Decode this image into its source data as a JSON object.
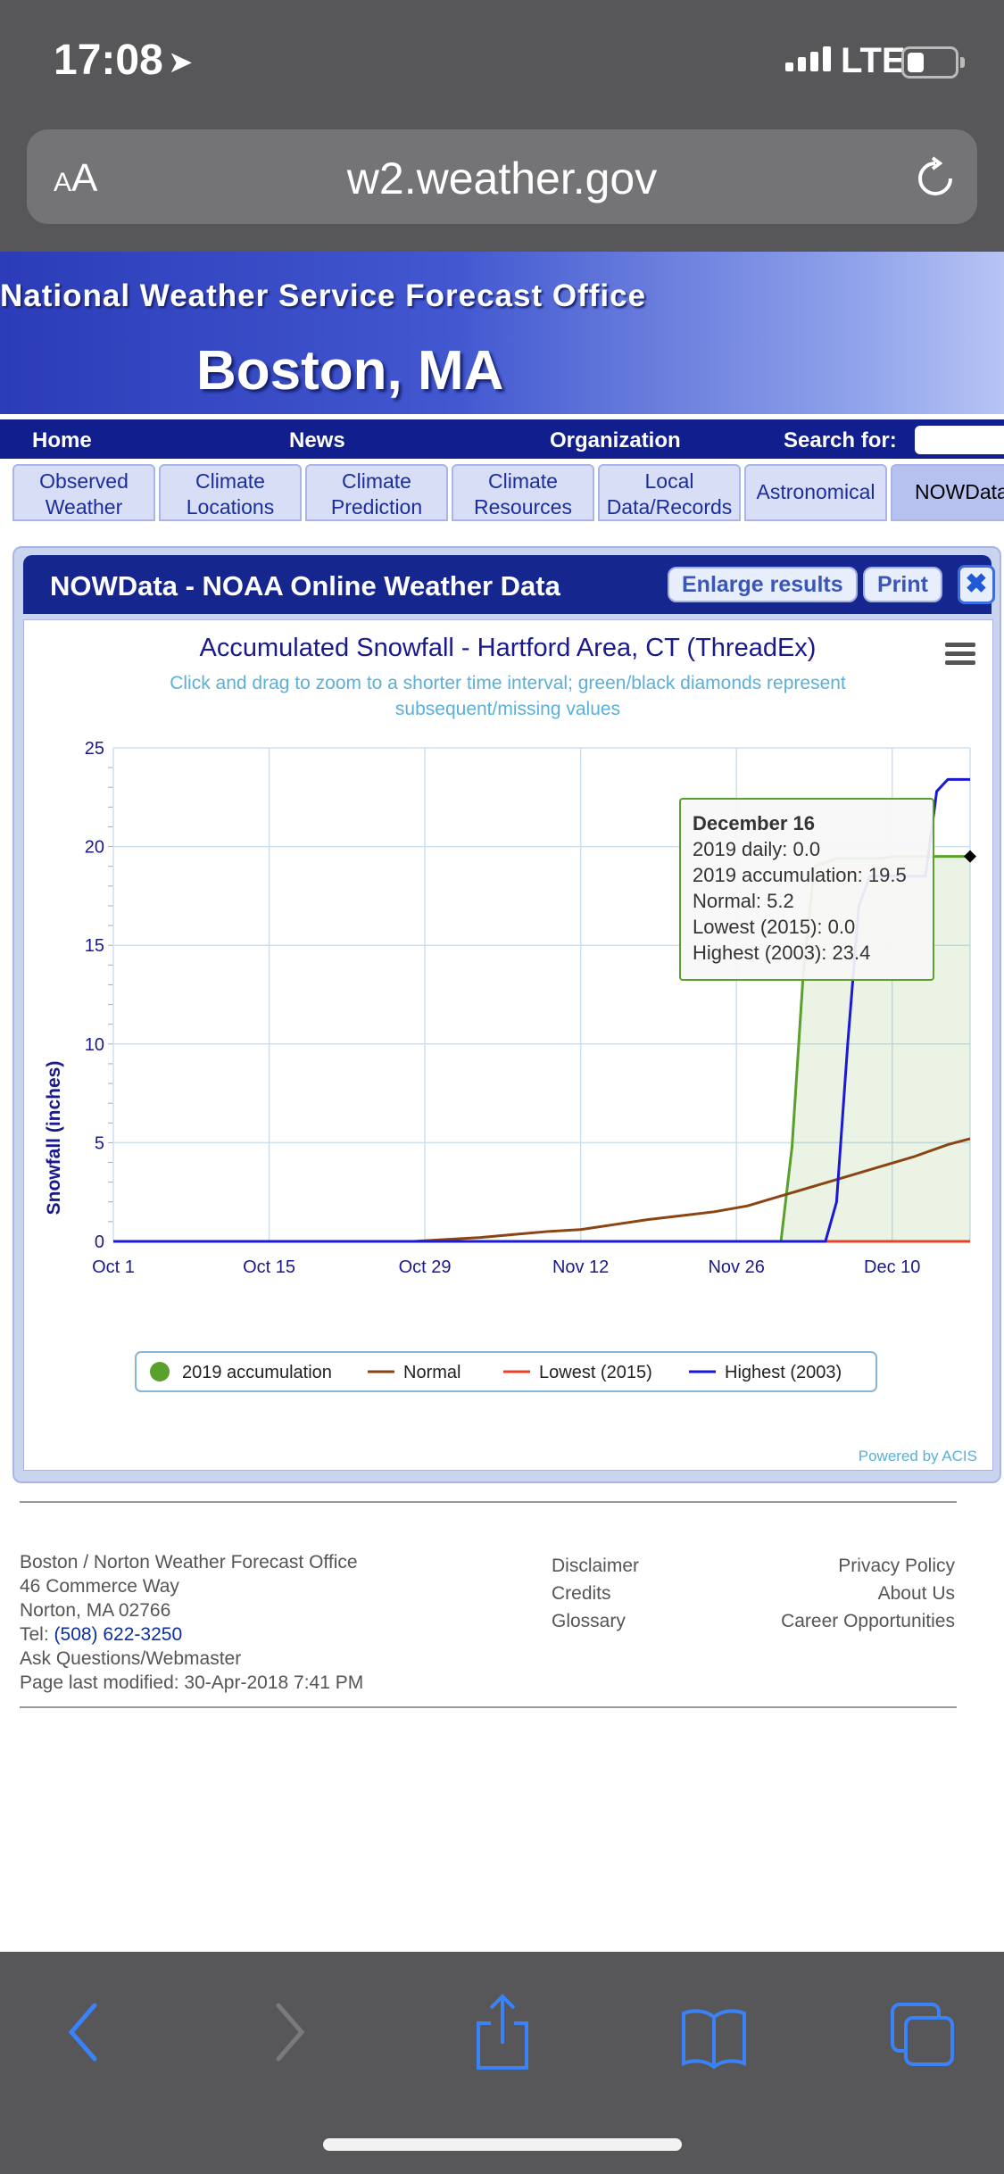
{
  "status": {
    "time": "17:08",
    "network": "LTE"
  },
  "browser": {
    "aa_small": "A",
    "aa_large": "A",
    "url": "w2.weather.gov"
  },
  "banner": {
    "line1": "National Weather Service Forecast Office",
    "line2": "Boston, MA"
  },
  "nav": {
    "home": "Home",
    "news": "News",
    "organization": "Organization",
    "search_label": "Search for:"
  },
  "tabs": [
    {
      "l1": "Observed",
      "l2": "Weather"
    },
    {
      "l1": "Climate",
      "l2": "Locations"
    },
    {
      "l1": "Climate",
      "l2": "Prediction"
    },
    {
      "l1": "Climate",
      "l2": "Resources"
    },
    {
      "l1": "Local",
      "l2": "Data/Records"
    },
    {
      "l1": "Astronomical",
      "l2": ""
    },
    {
      "l1": "NOWData",
      "l2": ""
    }
  ],
  "panel": {
    "title": "NOWData - NOAA Online Weather Data",
    "enlarge_label": "Enlarge results",
    "print_label": "Print",
    "close_symbol": "✖"
  },
  "chart_data": {
    "type": "line",
    "title": "Accumulated Snowfall - Hartford Area, CT (ThreadEx)",
    "subtitle_line1": "Click and drag to zoom to a shorter time interval; green/black diamonds represent",
    "subtitle_line2": "subsequent/missing values",
    "ylabel": "Snowfall (inches)",
    "ylim": [
      0,
      25
    ],
    "yticks": [
      "0",
      "5",
      "10",
      "15",
      "20",
      "25"
    ],
    "xlim": [
      "2019-10-01",
      "2019-12-17"
    ],
    "xticks": [
      "Oct 1",
      "Oct 15",
      "Oct 29",
      "Nov 12",
      "Nov 26",
      "Dec 10"
    ],
    "xtick_days": [
      0,
      14,
      28,
      42,
      56,
      70
    ],
    "grid": true,
    "legend_position": "bottom",
    "credit": "Powered by ACIS",
    "series": [
      {
        "name": "2019 accumulation",
        "color": "#5aa02c",
        "area": true,
        "points": [
          [
            0,
            0
          ],
          [
            60,
            0
          ],
          [
            61,
            4.8
          ],
          [
            62,
            13.5
          ],
          [
            63,
            19.0
          ],
          [
            64,
            19.2
          ],
          [
            65,
            19.4
          ],
          [
            66,
            19.4
          ],
          [
            67,
            19.4
          ],
          [
            68,
            19.4
          ],
          [
            69,
            19.4
          ],
          [
            70,
            19.5
          ],
          [
            71,
            19.5
          ],
          [
            72,
            19.5
          ],
          [
            73,
            19.5
          ],
          [
            74,
            19.5
          ],
          [
            75,
            19.5
          ],
          [
            76,
            19.5
          ],
          [
            77,
            19.5
          ]
        ]
      },
      {
        "name": "Normal",
        "color": "#8b4513",
        "points": [
          [
            0,
            0
          ],
          [
            27,
            0
          ],
          [
            30,
            0.1
          ],
          [
            33,
            0.2
          ],
          [
            36,
            0.35
          ],
          [
            39,
            0.5
          ],
          [
            42,
            0.6
          ],
          [
            45,
            0.85
          ],
          [
            48,
            1.1
          ],
          [
            51,
            1.3
          ],
          [
            54,
            1.5
          ],
          [
            57,
            1.8
          ],
          [
            60,
            2.3
          ],
          [
            63,
            2.8
          ],
          [
            66,
            3.3
          ],
          [
            69,
            3.8
          ],
          [
            72,
            4.3
          ],
          [
            75,
            4.9
          ],
          [
            77,
            5.2
          ]
        ]
      },
      {
        "name": "Lowest (2015)",
        "color": "#e8432a",
        "points": [
          [
            0,
            0
          ],
          [
            77,
            0
          ]
        ]
      },
      {
        "name": "Highest (2003)",
        "color": "#1a1ad6",
        "points": [
          [
            0,
            0
          ],
          [
            64,
            0
          ],
          [
            65,
            2.0
          ],
          [
            66,
            10.0
          ],
          [
            67,
            17.0
          ],
          [
            68,
            18.5
          ],
          [
            69,
            18.5
          ],
          [
            70,
            18.5
          ],
          [
            71,
            18.5
          ],
          [
            72,
            18.5
          ],
          [
            73,
            18.5
          ],
          [
            74,
            22.8
          ],
          [
            75,
            23.4
          ],
          [
            76,
            23.4
          ],
          [
            77,
            23.4
          ]
        ]
      }
    ],
    "tooltip": {
      "date": "December 16",
      "lines": [
        "2019 daily: 0.0",
        "2019 accumulation: 19.5",
        "Normal: 5.2",
        "Lowest (2015): 0.0",
        "Highest (2003): 23.4"
      ],
      "day": 76
    }
  },
  "footer": {
    "office": "Boston / Norton Weather Forecast Office",
    "street": "46 Commerce Way",
    "city": "Norton, MA 02766",
    "tel_label": "Tel: ",
    "tel_number": "(508) 622-3250",
    "contact": "Ask Questions/Webmaster",
    "modified": "Page last modified: 30-Apr-2018 7:41 PM",
    "disclaimer": "Disclaimer",
    "credits": "Credits",
    "glossary": "Glossary",
    "privacy": "Privacy Policy",
    "about": "About Us",
    "careers": "Career Opportunities"
  }
}
